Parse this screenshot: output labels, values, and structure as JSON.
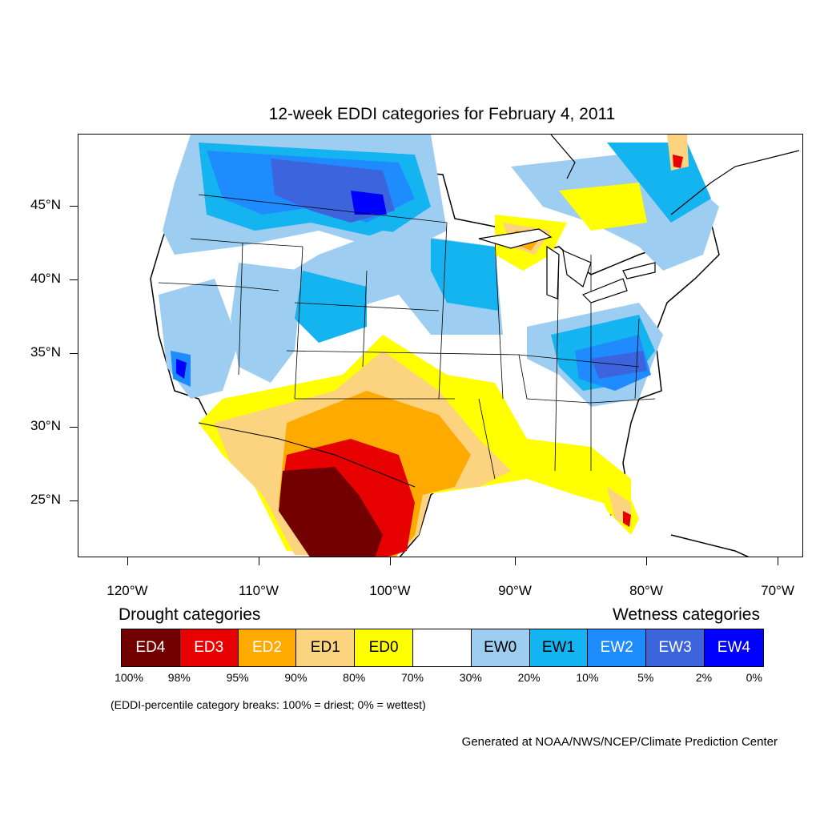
{
  "title": "12-week EDDI categories for February 4, 2011",
  "axes": {
    "lat_labels": [
      "45°N",
      "40°N",
      "35°N",
      "30°N",
      "25°N"
    ],
    "lon_labels": [
      "120°W",
      "110°W",
      "100°W",
      "90°W",
      "80°W",
      "70°W"
    ]
  },
  "legend": {
    "drought_heading": "Drought categories",
    "wetness_heading": "Wetness categories",
    "categories": [
      {
        "label": "ED4",
        "color": "#730000",
        "text_color": "#ffffff"
      },
      {
        "label": "ED3",
        "color": "#e60000",
        "text_color": "#ffffff"
      },
      {
        "label": "ED2",
        "color": "#ffaa00",
        "text_color": "#ffffff"
      },
      {
        "label": "ED1",
        "color": "#fcd37f",
        "text_color": "#000000"
      },
      {
        "label": "ED0",
        "color": "#ffff00",
        "text_color": "#000000"
      },
      {
        "label": "",
        "color": "#ffffff",
        "text_color": "#000000"
      },
      {
        "label": "EW0",
        "color": "#9dcdf0",
        "text_color": "#000000"
      },
      {
        "label": "EW1",
        "color": "#14b4f0",
        "text_color": "#000000"
      },
      {
        "label": "EW2",
        "color": "#1e8cff",
        "text_color": "#ffffff"
      },
      {
        "label": "EW3",
        "color": "#3c64dc",
        "text_color": "#ffffff"
      },
      {
        "label": "EW4",
        "color": "#0000ff",
        "text_color": "#ffffff"
      }
    ],
    "breaks": [
      "100%",
      "98%",
      "95%",
      "90%",
      "80%",
      "70%",
      "30%",
      "20%",
      "10%",
      "5%",
      "2%",
      "0%"
    ],
    "break_note": "(EDDI-percentile category breaks: 100% = driest; 0% = wettest)"
  },
  "credit": "Generated at NOAA/NWS/NCEP/Climate Prediction Center"
}
